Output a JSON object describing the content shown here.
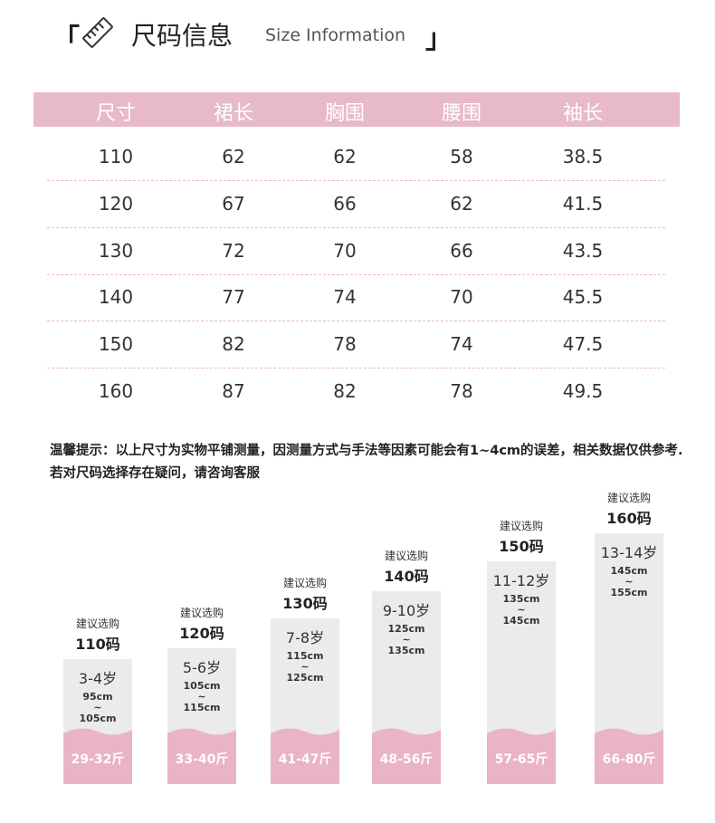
{
  "header": {
    "open": "「",
    "title": "尺码信息",
    "subtitle": "Size Information",
    "close": "」"
  },
  "table": {
    "headers": [
      "尺寸",
      "裙长",
      "胸围",
      "腰围",
      "袖长"
    ],
    "rows": [
      [
        "110",
        "62",
        "62",
        "58",
        "38.5"
      ],
      [
        "120",
        "67",
        "66",
        "62",
        "41.5"
      ],
      [
        "130",
        "72",
        "70",
        "66",
        "43.5"
      ],
      [
        "140",
        "77",
        "74",
        "70",
        "45.5"
      ],
      [
        "150",
        "82",
        "78",
        "74",
        "47.5"
      ],
      [
        "160",
        "87",
        "82",
        "78",
        "49.5"
      ]
    ]
  },
  "note": "温馨提示：以上尺寸为实物平铺测量，因测量方式与手法等因素可能会有1~4cm的误差，相关数据仅供参考.若对尺码选择存在疑问，请咨询客服",
  "sizes": [
    {
      "suggest": "建议选购",
      "size": "110码",
      "age": "3-4岁",
      "height": [
        "95cm",
        "~",
        "105cm"
      ],
      "weight": "29-32斤"
    },
    {
      "suggest": "建议选购",
      "size": "120码",
      "age": "5-6岁",
      "height": [
        "105cm",
        "~",
        "115cm"
      ],
      "weight": "33-40斤"
    },
    {
      "suggest": "建议选购",
      "size": "130码",
      "age": "7-8岁",
      "height": [
        "115cm",
        "~",
        "125cm"
      ],
      "weight": "41-47斤"
    },
    {
      "suggest": "建议选购",
      "size": "140码",
      "age": "9-10岁",
      "height": [
        "125cm",
        "~",
        "135cm"
      ],
      "weight": "48-56斤"
    },
    {
      "suggest": "建议选购",
      "size": "150码",
      "age": "11-12岁",
      "height": [
        "135cm",
        "~",
        "145cm"
      ],
      "weight": "57-65斤"
    },
    {
      "suggest": "建议选购",
      "size": "160码",
      "age": "13-14岁",
      "height": [
        "145cm",
        "~",
        "155cm"
      ],
      "weight": "66-80斤"
    }
  ]
}
